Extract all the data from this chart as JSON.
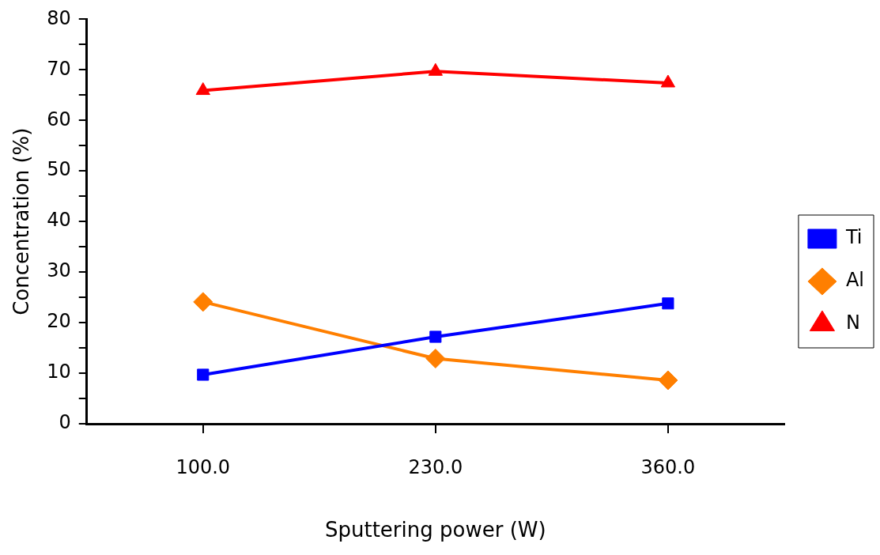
{
  "chart_data": {
    "type": "line",
    "xlabel": "Sputtering power (W)",
    "ylabel": "Concentration (%)",
    "categories": [
      "100.0",
      "230.0",
      "360.0"
    ],
    "series": [
      {
        "name": "Ti",
        "color": "#0000ff",
        "values": [
          9.7,
          17.2,
          23.8
        ],
        "marker": "square"
      },
      {
        "name": "Al",
        "color": "#ff7f00",
        "values": [
          24.1,
          12.9,
          8.6
        ],
        "marker": "diamond"
      },
      {
        "name": "N",
        "color": "#ff0000",
        "values": [
          65.9,
          69.7,
          67.4
        ],
        "marker": "triangle"
      }
    ],
    "ylim": [
      0,
      80
    ],
    "yticks": [
      0,
      {
        "value": 5,
        "label": null
      },
      10,
      {
        "value": 15,
        "label": null
      },
      20,
      {
        "value": 25,
        "label": null
      },
      30,
      {
        "value": 35,
        "label": null
      },
      40,
      {
        "value": 45,
        "label": null
      },
      50,
      {
        "value": 55,
        "label": null
      },
      60,
      {
        "value": 65,
        "label": null
      },
      70,
      {
        "value": 75,
        "label": null
      },
      80
    ],
    "grid": false,
    "legend": "right",
    "line_style": "solid"
  }
}
